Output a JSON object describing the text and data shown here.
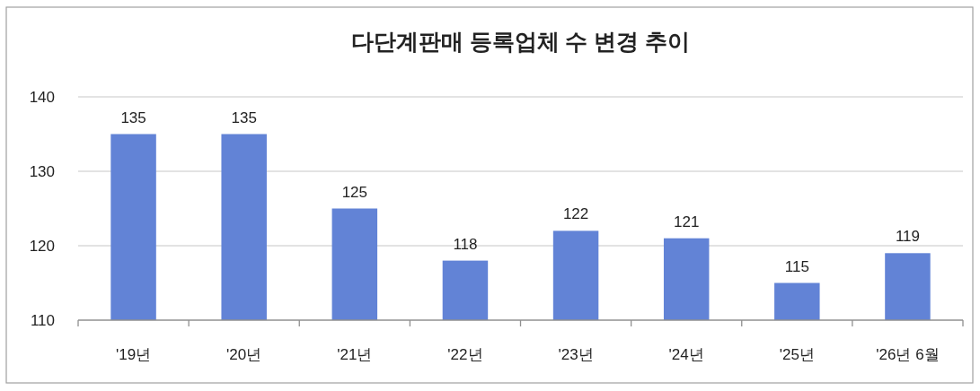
{
  "chart_data": {
    "type": "bar",
    "title": "다단계판매 등록업체 수 변경 추이",
    "categories": [
      "'19년",
      "'20년",
      "'21년",
      "'22년",
      "'23년",
      "'24년",
      "'25년",
      "'26년 6월"
    ],
    "values": [
      135,
      135,
      125,
      118,
      122,
      121,
      115,
      119
    ],
    "color": "#6283d6",
    "ylim": [
      110,
      140
    ],
    "yticks": [
      110,
      120,
      130,
      140
    ],
    "grid": "y",
    "data_labels": true
  }
}
